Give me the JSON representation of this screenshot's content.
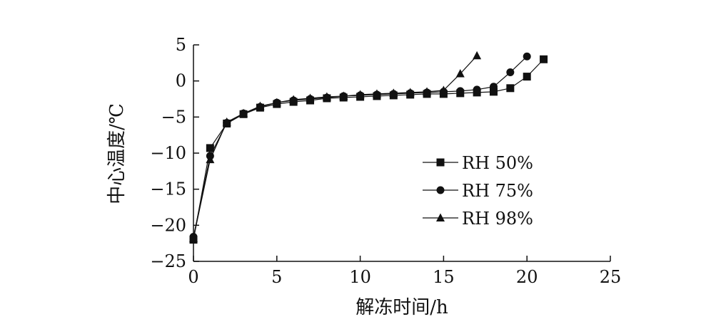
{
  "chart_data": {
    "type": "line",
    "title": "",
    "xlabel": "解冻时间/h",
    "ylabel": "中心温度/℃",
    "xlim": [
      0,
      25
    ],
    "ylim": [
      -25,
      5
    ],
    "xticks": [
      "0",
      "5",
      "10",
      "15",
      "20",
      "25"
    ],
    "yticks": [
      "5",
      "0",
      "−5",
      "−10",
      "−15",
      "−20",
      "−25"
    ],
    "grid": false,
    "legend": "center-right",
    "series": [
      {
        "name": "RH 50%",
        "marker": "square",
        "x": [
          0,
          1,
          2,
          3,
          4,
          5,
          6,
          7,
          8,
          9,
          10,
          11,
          12,
          13,
          14,
          15,
          16,
          17,
          18,
          19,
          20,
          21
        ],
        "y": [
          -22.0,
          -9.3,
          -5.9,
          -4.6,
          -3.7,
          -3.2,
          -2.9,
          -2.7,
          -2.4,
          -2.3,
          -2.2,
          -2.1,
          -2.0,
          -1.9,
          -1.8,
          -1.8,
          -1.7,
          -1.6,
          -1.5,
          -1.0,
          0.6,
          3.0
        ]
      },
      {
        "name": "RH 75%",
        "marker": "circle",
        "x": [
          0,
          1,
          2,
          3,
          4,
          5,
          6,
          7,
          8,
          9,
          10,
          11,
          12,
          13,
          14,
          15,
          16,
          17,
          18,
          19,
          20
        ],
        "y": [
          -21.6,
          -10.4,
          -5.8,
          -4.5,
          -3.6,
          -3.0,
          -2.7,
          -2.5,
          -2.3,
          -2.1,
          -2.0,
          -1.9,
          -1.8,
          -1.7,
          -1.6,
          -1.5,
          -1.4,
          -1.2,
          -0.8,
          1.2,
          3.4
        ]
      },
      {
        "name": "RH 98%",
        "marker": "triangle",
        "x": [
          0,
          1,
          2,
          3,
          4,
          5,
          6,
          7,
          8,
          9,
          10,
          11,
          12,
          13,
          14,
          15,
          16,
          17
        ],
        "y": [
          -21.8,
          -10.9,
          -5.7,
          -4.5,
          -3.5,
          -3.0,
          -2.6,
          -2.4,
          -2.2,
          -2.1,
          -1.9,
          -1.8,
          -1.7,
          -1.6,
          -1.5,
          -1.3,
          1.0,
          3.5
        ]
      }
    ]
  }
}
